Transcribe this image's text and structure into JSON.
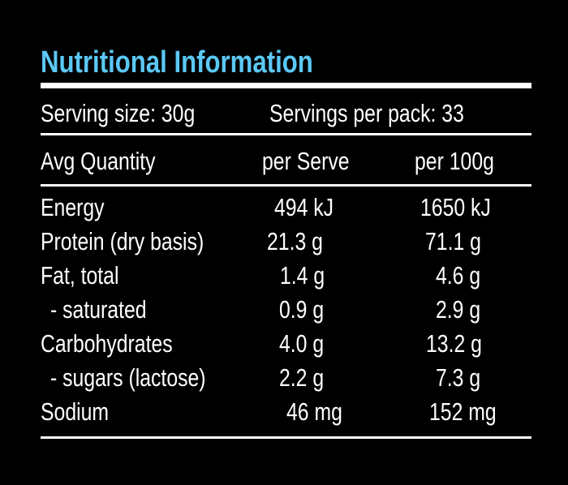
{
  "title": "Nutritional Information",
  "serving": {
    "size": "Serving size:  30g",
    "per_pack": "Servings per pack: 33"
  },
  "headers": {
    "quantity": "Avg Quantity",
    "per_serve": "per Serve",
    "per_100g": "per 100g"
  },
  "rows": [
    {
      "name": "Energy",
      "per_serve": "494 kJ",
      "per_100g": "1650 kJ"
    },
    {
      "name": "Protein (dry basis)",
      "per_serve": "21.3 g",
      "per_100g": "71.1 g"
    },
    {
      "name": "Fat, total",
      "per_serve": "1.4 g",
      "per_100g": "4.6 g"
    },
    {
      "name": "- saturated",
      "per_serve": "0.9 g",
      "per_100g": "2.9 g"
    },
    {
      "name": "Carbohydrates",
      "per_serve": "4.0 g",
      "per_100g": "13.2 g"
    },
    {
      "name": "- sugars (lactose)",
      "per_serve": "2.2 g",
      "per_100g": "7.3 g"
    },
    {
      "name": "Sodium",
      "per_serve": "46 mg",
      "per_100g": "152 mg"
    }
  ],
  "colors": {
    "title": "#5bc8f5",
    "background": "#000000",
    "text": "#ffffff"
  }
}
